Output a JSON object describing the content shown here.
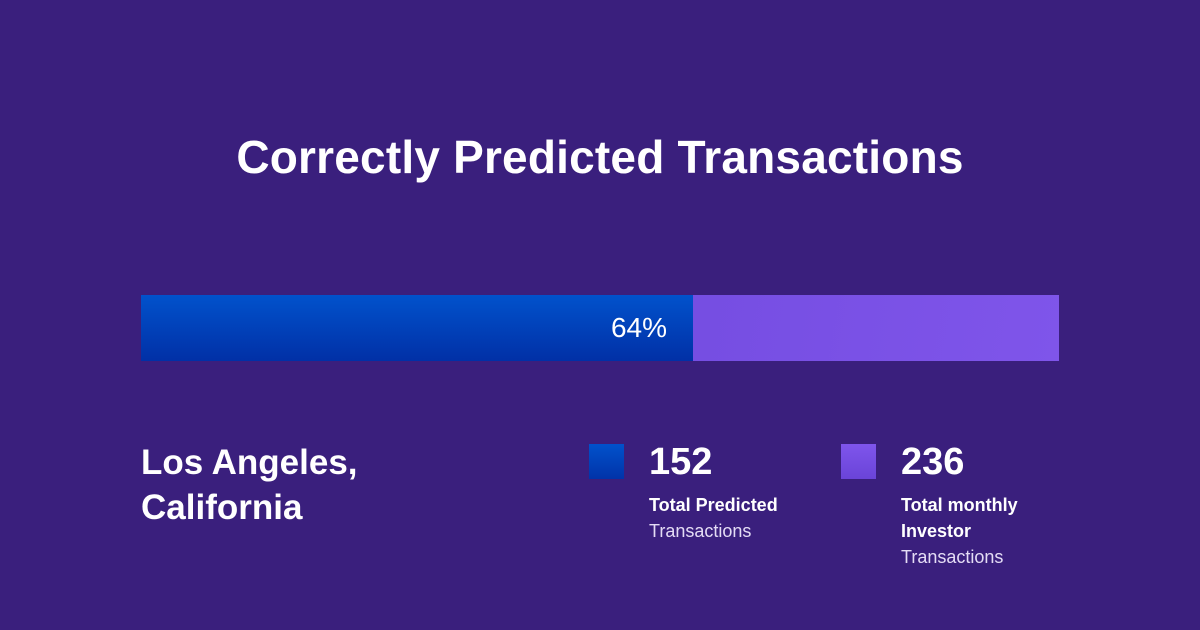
{
  "title": "Correctly Predicted Transactions",
  "location": [
    "Los Angeles,",
    "California"
  ],
  "colors": {
    "background": "#3a1f7d",
    "predicted": "#0145c0",
    "investor": "#7650e4"
  },
  "chart_data": {
    "type": "bar",
    "orientation": "horizontal-stacked",
    "title": "Correctly Predicted Transactions",
    "percent_label": "64%",
    "predicted_fraction": 0.64,
    "series": [
      {
        "name": "Total Predicted Transactions",
        "value": 152
      },
      {
        "name": "Total monthly Investor Transactions",
        "value": 236
      }
    ]
  },
  "legend": [
    {
      "value": "152",
      "bold": "Total Predicted",
      "light": "Transactions"
    },
    {
      "value": "236",
      "bold": "Total monthly Investor",
      "light": "Transactions"
    }
  ]
}
